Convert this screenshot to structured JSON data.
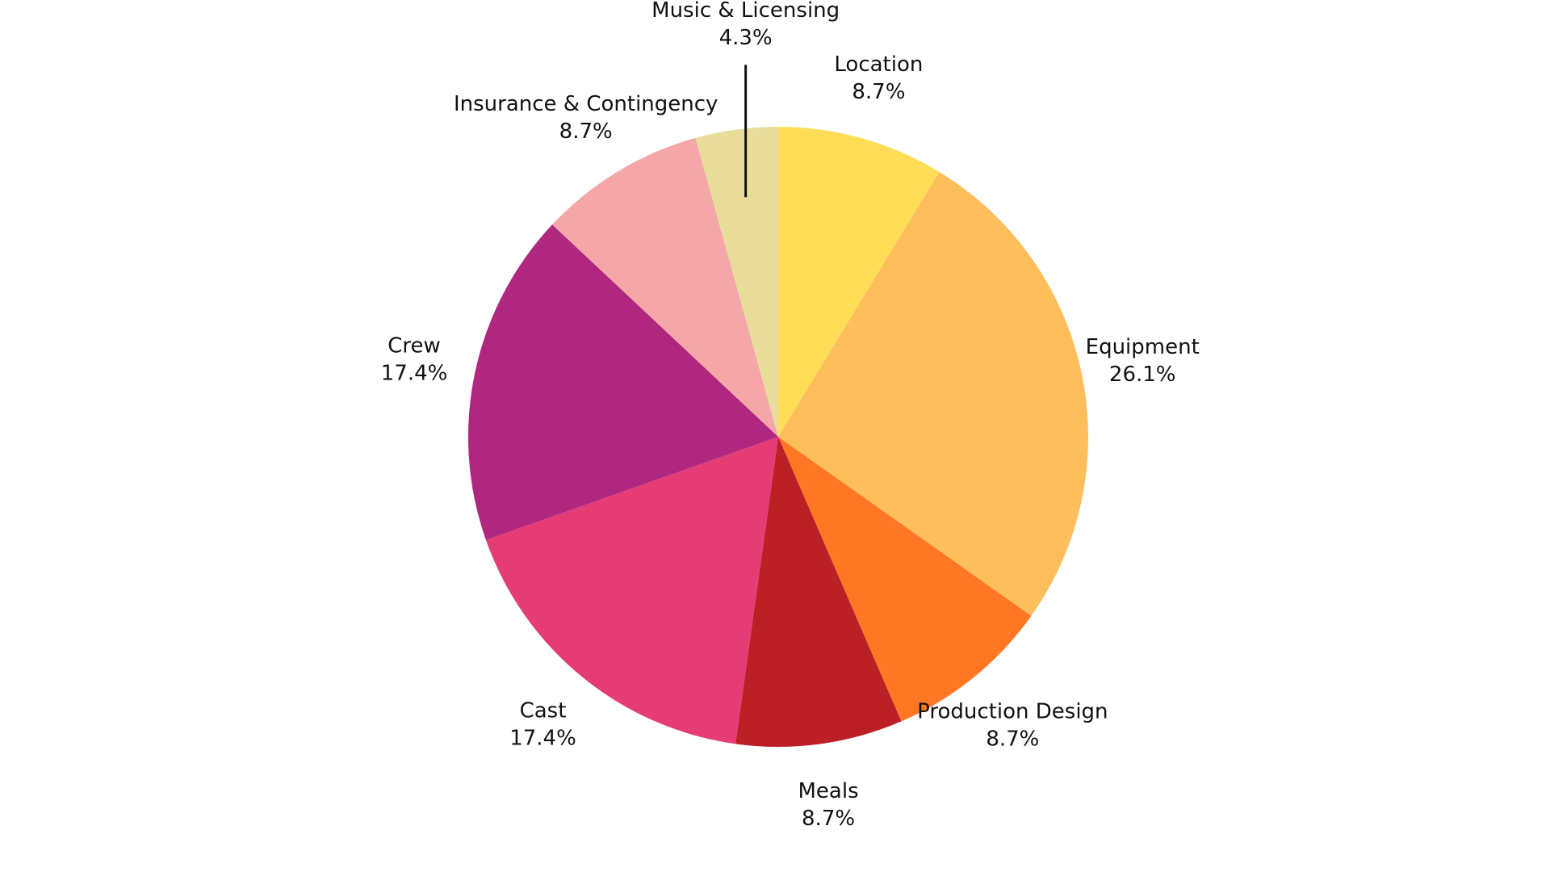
{
  "chart_data": {
    "type": "pie",
    "categories": [
      "Location",
      "Equipment",
      "Production Design",
      "Meals",
      "Cast",
      "Crew",
      "Insurance & Contingency",
      "Music & Licensing"
    ],
    "values": [
      8.7,
      26.1,
      8.7,
      8.7,
      17.4,
      17.4,
      8.7,
      4.3
    ],
    "value_labels": [
      "8.7%",
      "26.1%",
      "8.7%",
      "8.7%",
      "17.4%",
      "17.4%",
      "8.7%",
      "4.3%"
    ],
    "colors": [
      "#ffdd57",
      "#ffbe5c",
      "#ff7722",
      "#bb2026",
      "#e63c76",
      "#b0277f",
      "#f4a6a9",
      "#e8dd9a"
    ]
  }
}
